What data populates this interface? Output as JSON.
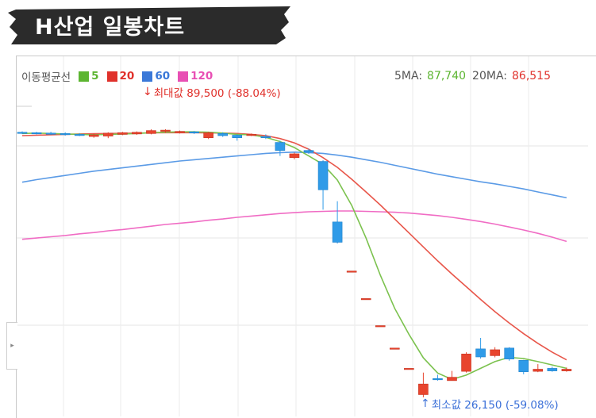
{
  "title": "H산업 일봉차트",
  "legend": {
    "label": "이동평균선",
    "items": [
      {
        "label": "5",
        "color": "#5cb531"
      },
      {
        "label": "20",
        "color": "#e0312b"
      },
      {
        "label": "60",
        "color": "#3a78d8"
      },
      {
        "label": "120",
        "color": "#e84fb4"
      }
    ]
  },
  "ma_values": {
    "ma5_label": "5MA:",
    "ma5_value": "87,740",
    "ma20_label": "20MA:",
    "ma20_value": "86,515"
  },
  "annotations": {
    "max_label": "최대값 89,500 (-88.04%)",
    "min_label": "최소값 26,150 (-59.08%)"
  },
  "colors": {
    "up": "#e8452e",
    "down": "#2f9be8",
    "ma5": "#7cc24f",
    "ma20": "#e8564a",
    "ma60": "#5b9be6",
    "ma120": "#f06cc4",
    "banner": "#2b2b2b"
  },
  "side_tab_icon": "chevron-right-icon",
  "chart_data": {
    "type": "candlestick",
    "ylim": [
      20000,
      100000
    ],
    "candles": [
      {
        "open": 88800,
        "close": 88700,
        "high": 89000,
        "low": 88400
      },
      {
        "open": 88700,
        "close": 88600,
        "high": 88900,
        "low": 88300
      },
      {
        "open": 88600,
        "close": 88500,
        "high": 88900,
        "low": 88200
      },
      {
        "open": 88500,
        "close": 88300,
        "high": 88800,
        "low": 88000
      },
      {
        "open": 88300,
        "close": 88200,
        "high": 88600,
        "low": 87900
      },
      {
        "open": 87800,
        "close": 88200,
        "high": 88500,
        "low": 87500
      },
      {
        "open": 87900,
        "close": 88600,
        "high": 88800,
        "low": 87400
      },
      {
        "open": 88300,
        "close": 88700,
        "high": 88900,
        "low": 88100
      },
      {
        "open": 88400,
        "close": 88800,
        "high": 89000,
        "low": 88200
      },
      {
        "open": 88500,
        "close": 89200,
        "high": 89500,
        "low": 88300
      },
      {
        "open": 89100,
        "close": 89300,
        "high": 89500,
        "low": 88700
      },
      {
        "open": 88800,
        "close": 89000,
        "high": 89200,
        "low": 88500
      },
      {
        "open": 88900,
        "close": 88700,
        "high": 89100,
        "low": 88400
      },
      {
        "open": 87500,
        "close": 88700,
        "high": 88900,
        "low": 87200
      },
      {
        "open": 88500,
        "close": 88000,
        "high": 88800,
        "low": 87700
      },
      {
        "open": 88100,
        "close": 87500,
        "high": 88300,
        "low": 86800
      },
      {
        "open": 88200,
        "close": 88300,
        "high": 88500,
        "low": 87900
      },
      {
        "open": 87800,
        "close": 87500,
        "high": 88300,
        "low": 87200
      },
      {
        "open": 86400,
        "close": 84500,
        "high": 86800,
        "low": 83200
      },
      {
        "open": 82800,
        "close": 83700,
        "high": 84000,
        "low": 82400
      },
      {
        "open": 84500,
        "close": 84100,
        "high": 84900,
        "low": 83700
      },
      {
        "open": 81900,
        "close": 75200,
        "high": 82200,
        "low": 70500
      },
      {
        "open": 67600,
        "close": 62800,
        "high": 72500,
        "low": 62500
      },
      {
        "open": 56000,
        "close": 56000,
        "high": 56000,
        "low": 56000
      },
      {
        "open": 49500,
        "close": 49500,
        "high": 49500,
        "low": 49500
      },
      {
        "open": 43100,
        "close": 43100,
        "high": 43100,
        "low": 43100
      },
      {
        "open": 37800,
        "close": 37800,
        "high": 37800,
        "low": 37800
      },
      {
        "open": 33000,
        "close": 33000,
        "high": 33000,
        "low": 33000
      },
      {
        "open": 26800,
        "close": 29300,
        "high": 32000,
        "low": 26150
      },
      {
        "open": 30600,
        "close": 30300,
        "high": 31500,
        "low": 30100
      },
      {
        "open": 30100,
        "close": 30900,
        "high": 32400,
        "low": 30100
      },
      {
        "open": 32300,
        "close": 36400,
        "high": 36800,
        "low": 32000
      },
      {
        "open": 37600,
        "close": 35700,
        "high": 40200,
        "low": 35300
      },
      {
        "open": 36000,
        "close": 37400,
        "high": 38000,
        "low": 35600
      },
      {
        "open": 37800,
        "close": 35200,
        "high": 38000,
        "low": 34800
      },
      {
        "open": 34900,
        "close": 32200,
        "high": 35000,
        "low": 31600
      },
      {
        "open": 32300,
        "close": 32800,
        "high": 34000,
        "low": 32100
      },
      {
        "open": 33000,
        "close": 32400,
        "high": 33400,
        "low": 32200
      },
      {
        "open": 32400,
        "close": 32800,
        "high": 33200,
        "low": 32200
      }
    ],
    "series": [
      {
        "name": "5",
        "values": [
          88500,
          88600,
          88500,
          88400,
          88300,
          88200,
          88300,
          88400,
          88500,
          88700,
          88800,
          88900,
          88900,
          88800,
          88600,
          88300,
          88200,
          87600,
          86600,
          85200,
          83200,
          81200,
          77500,
          71500,
          63800,
          55000,
          47200,
          41000,
          35500,
          31900,
          30400,
          31400,
          33000,
          34600,
          35600,
          35300,
          34600,
          33800,
          33000
        ]
      },
      {
        "name": "20",
        "values": [
          88000,
          88100,
          88200,
          88300,
          88400,
          88450,
          88500,
          88550,
          88600,
          88650,
          88700,
          88700,
          88700,
          88650,
          88600,
          88500,
          88300,
          88000,
          87300,
          86300,
          84800,
          82800,
          80500,
          77700,
          74700,
          71600,
          68300,
          65000,
          61700,
          58400,
          55300,
          52300,
          49300,
          46400,
          43700,
          41200,
          38900,
          36800,
          35000
        ]
      },
      {
        "name": "60",
        "values": [
          77000,
          77600,
          78100,
          78600,
          79100,
          79600,
          80000,
          80400,
          80800,
          81200,
          81600,
          82000,
          82300,
          82600,
          82900,
          83200,
          83500,
          83800,
          84000,
          84100,
          84000,
          83800,
          83400,
          82900,
          82300,
          81700,
          81000,
          80300,
          79600,
          78900,
          78300,
          77700,
          77100,
          76600,
          76000,
          75400,
          74700,
          74000,
          73300
        ]
      },
      {
        "name": "120",
        "values": [
          63500,
          63800,
          64100,
          64400,
          64800,
          65100,
          65500,
          65800,
          66200,
          66600,
          67000,
          67300,
          67600,
          68000,
          68300,
          68700,
          69000,
          69300,
          69600,
          69800,
          70000,
          70100,
          70200,
          70200,
          70100,
          70000,
          69900,
          69700,
          69400,
          69100,
          68700,
          68200,
          67700,
          67100,
          66400,
          65700,
          64900,
          64000,
          63000
        ]
      }
    ],
    "annotations": [
      {
        "label": "최대값 89,500 (-88.04%)",
        "value": 89500
      },
      {
        "label": "최소값 26,150 (-59.08%)",
        "value": 26150
      }
    ],
    "grid": true,
    "legend_position": "top-left"
  }
}
